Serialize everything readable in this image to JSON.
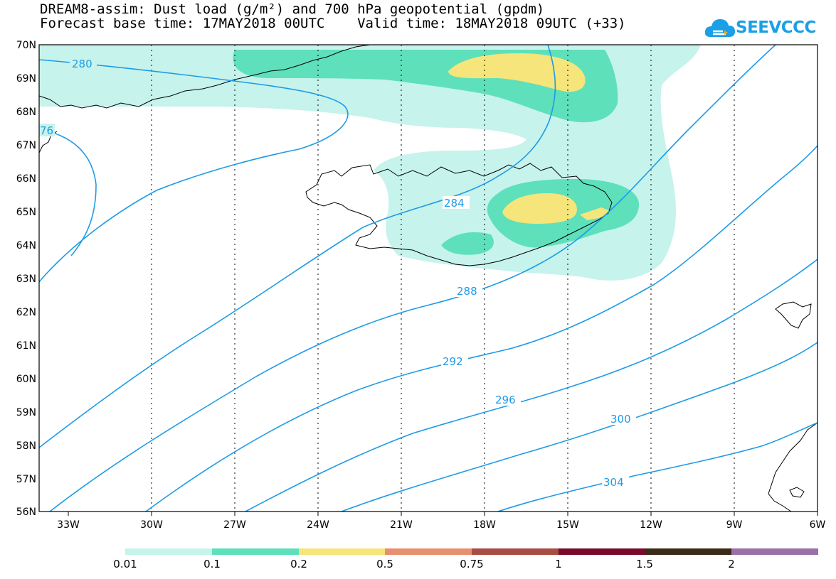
{
  "header": {
    "title_line1": "DREAM8-assim: Dust load (g/m²) and 700 hPa geopotential (gpdm)",
    "title_line2": "Forecast base time: 17MAY2018 00UTC    Valid time: 18MAY2018 09UTC (+33)",
    "logo_text": "SEEVCCC",
    "logo_icon": "cloud-icon",
    "logo_color": "#1aa0e6"
  },
  "axes": {
    "lat_labels": [
      "70N",
      "69N",
      "68N",
      "67N",
      "66N",
      "65N",
      "64N",
      "63N",
      "62N",
      "61N",
      "60N",
      "59N",
      "58N",
      "57N",
      "56N"
    ],
    "lon_labels": [
      "33W",
      "30W",
      "27W",
      "24W",
      "21W",
      "18W",
      "15W",
      "12W",
      "9W",
      "6W"
    ],
    "grid": "dotted"
  },
  "contours": {
    "color": "#1e9be6",
    "labels": [
      "280",
      "76",
      "284",
      "288",
      "292",
      "296",
      "300",
      "304"
    ]
  },
  "legend": {
    "colors": [
      "#c6f3ec",
      "#5ee0bb",
      "#f5e57a",
      "#e69070",
      "#a84c44",
      "#7a0a2c",
      "#3a2a18",
      "#9a70a8"
    ],
    "labels": [
      "0.01",
      "0.1",
      "0.2",
      "0.5",
      "0.75",
      "1",
      "1.5",
      "2"
    ]
  }
}
